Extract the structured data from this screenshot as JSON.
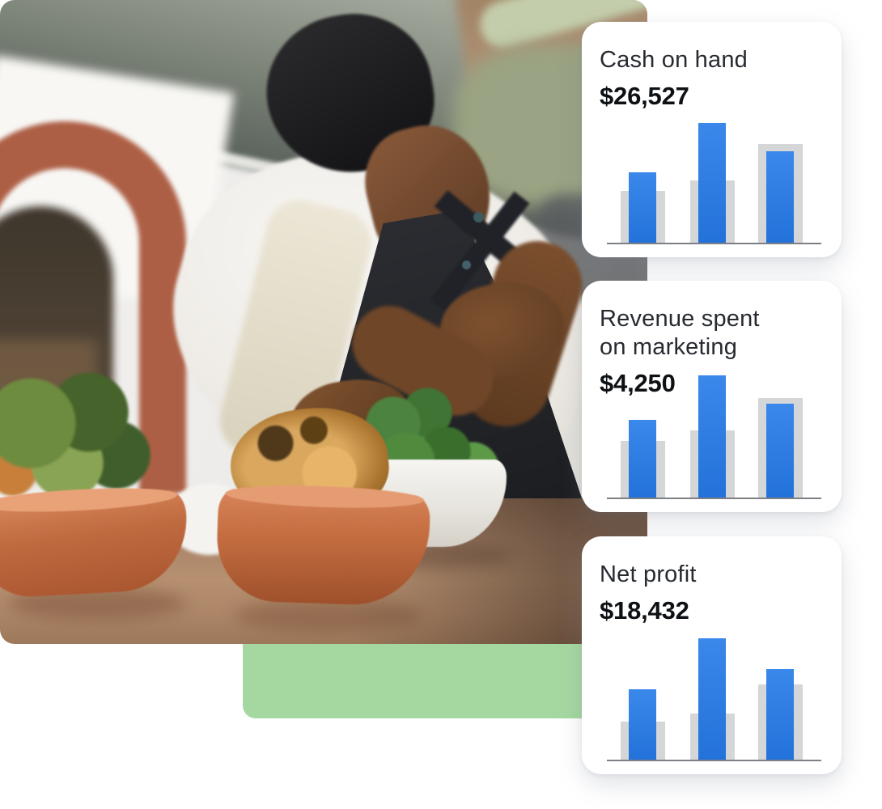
{
  "colors": {
    "accent_green": "#a5d8a0",
    "bar_blue": "#2372da",
    "bar_blue_light": "#3a88ea",
    "bar_gray": "#d5d6d8",
    "axis": "#7c7f84",
    "card_background": "#ffffff",
    "page_background": "#ffffff"
  },
  "photo": {
    "description": "Chef in a dark beanie and black apron over a white chef coat garnishing a roast chicken with fresh greens; terracotta bowls and a salad on a kitchen counter, brick oven arch at left"
  },
  "cards": [
    {
      "title": "Cash on hand",
      "value": "$26,527",
      "chart": {
        "type": "bar",
        "groups": [
          {
            "gray": 64,
            "blue": 87
          },
          {
            "gray": 77,
            "blue": 148
          },
          {
            "gray": 122,
            "blue": 113
          }
        ]
      }
    },
    {
      "title": "Revenue spent on marketing",
      "value": "$4,250",
      "chart": {
        "type": "bar",
        "groups": [
          {
            "gray": 70,
            "blue": 96
          },
          {
            "gray": 83,
            "blue": 151
          },
          {
            "gray": 123,
            "blue": 116
          }
        ]
      }
    },
    {
      "title": "Net profit",
      "value": "$18,432",
      "chart": {
        "type": "bar",
        "groups": [
          {
            "gray": 47,
            "blue": 87
          },
          {
            "gray": 57,
            "blue": 150
          },
          {
            "gray": 93,
            "blue": 112
          }
        ]
      }
    }
  ]
}
